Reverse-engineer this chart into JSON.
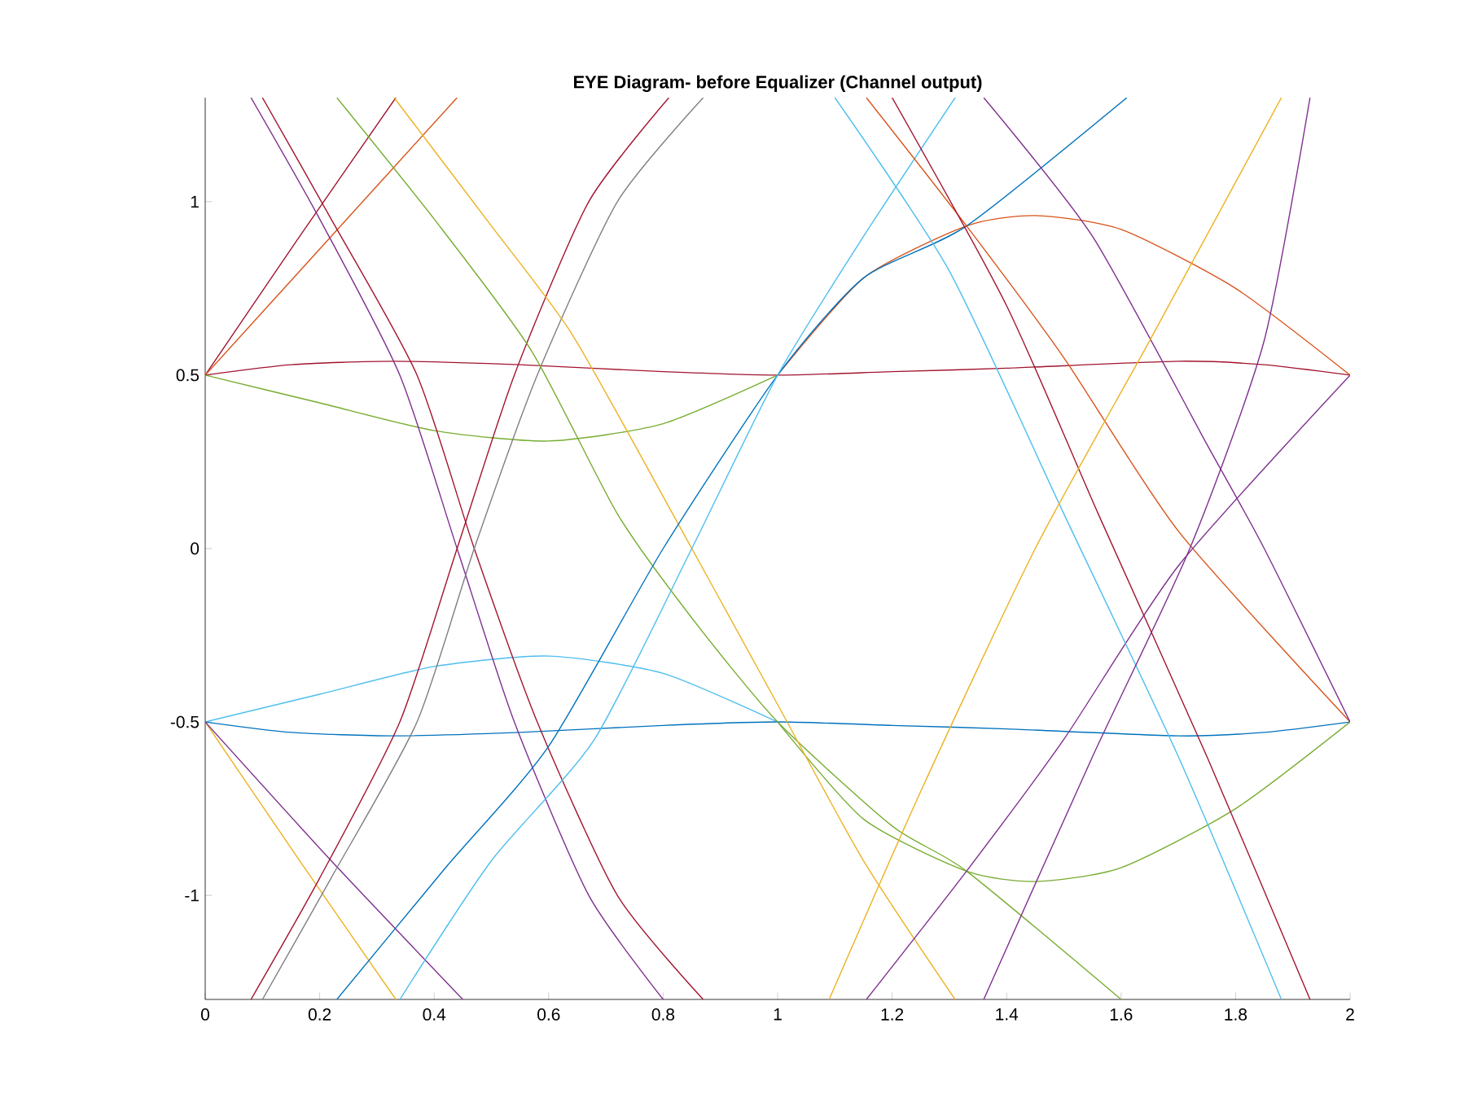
{
  "chart_data": {
    "type": "line",
    "title": "EYE Diagram- before Equalizer (Channel output)",
    "xlim": [
      0,
      2
    ],
    "ylim": [
      -1.3,
      1.3
    ],
    "xticks": [
      0,
      0.2,
      0.4,
      0.6,
      0.8,
      1,
      1.2,
      1.4,
      1.6,
      1.8,
      2
    ],
    "yticks": [
      -1,
      -0.5,
      0,
      0.5,
      1
    ],
    "grid": false,
    "marker": "none",
    "line_style": "solid",
    "series": [
      {
        "color": "#a2142f",
        "x": [
          0,
          0.15,
          0.33,
          0.55,
          0.8,
          1.0,
          1.2,
          1.4,
          1.7,
          1.85,
          2
        ],
        "values": [
          0.5,
          0.53,
          0.54,
          0.53,
          0.51,
          0.5,
          0.51,
          0.52,
          0.54,
          0.53,
          0.5
        ]
      },
      {
        "color": "#77ac30",
        "x": [
          0,
          0.2,
          0.4,
          0.6,
          0.8,
          1.0
        ],
        "values": [
          0.5,
          0.42,
          0.34,
          0.31,
          0.36,
          0.5
        ]
      },
      {
        "color": "#4dbeee",
        "x": [
          0,
          0.2,
          0.4,
          0.6,
          0.8,
          1.0
        ],
        "values": [
          -0.5,
          -0.42,
          -0.34,
          -0.31,
          -0.36,
          -0.5
        ]
      },
      {
        "color": "#0072bd",
        "x": [
          0,
          0.15,
          0.33,
          0.55,
          0.8,
          1.0,
          1.2,
          1.4,
          1.7,
          1.85,
          2
        ],
        "values": [
          -0.5,
          -0.53,
          -0.54,
          -0.53,
          -0.51,
          -0.5,
          -0.51,
          -0.52,
          -0.54,
          -0.53,
          -0.5
        ]
      },
      {
        "color": "#d95319",
        "x": [
          1.0,
          1.15,
          1.33,
          1.45,
          1.6,
          1.8,
          2.0
        ],
        "values": [
          0.5,
          0.78,
          0.93,
          0.96,
          0.92,
          0.75,
          0.5
        ]
      },
      {
        "color": "#77ac30",
        "x": [
          1.0,
          1.15,
          1.33,
          1.45,
          1.6,
          1.8,
          2.0
        ],
        "values": [
          -0.5,
          -0.78,
          -0.93,
          -0.96,
          -0.92,
          -0.75,
          -0.5
        ]
      },
      {
        "color": "#a2142f",
        "x": [
          0,
          0.165,
          0.333
        ],
        "values": [
          0.5,
          0.9,
          1.3
        ]
      },
      {
        "color": "#d95319",
        "x": [
          0,
          0.22,
          0.44
        ],
        "values": [
          0.5,
          0.9,
          1.3
        ]
      },
      {
        "color": "#edb120",
        "x": [
          0,
          0.165,
          0.333
        ],
        "values": [
          -0.5,
          -0.9,
          -1.3
        ]
      },
      {
        "color": "#7e2f8e",
        "x": [
          0,
          0.22,
          0.45
        ],
        "values": [
          -0.5,
          -0.9,
          -1.3
        ]
      },
      {
        "color": "#7e2f8e",
        "x": [
          0.08,
          0.2,
          0.34,
          0.44,
          0.54,
          0.67,
          0.8
        ],
        "values": [
          1.3,
          0.95,
          0.5,
          0.0,
          -0.5,
          -1.0,
          -1.3
        ]
      },
      {
        "color": "#a2142f",
        "x": [
          0.1,
          0.22,
          0.37,
          0.47,
          0.58,
          0.72,
          0.87
        ],
        "values": [
          1.3,
          0.95,
          0.5,
          0.0,
          -0.5,
          -1.0,
          -1.3
        ]
      },
      {
        "color": "#a2142f",
        "x": [
          0.08,
          0.2,
          0.34,
          0.44,
          0.54,
          0.67,
          0.81
        ],
        "values": [
          -1.3,
          -0.95,
          -0.5,
          0.0,
          0.5,
          1.0,
          1.3
        ]
      },
      {
        "color": "#7f7f7f",
        "x": [
          0.1,
          0.22,
          0.37,
          0.47,
          0.58,
          0.72,
          0.87
        ],
        "values": [
          -1.3,
          -0.95,
          -0.5,
          0.0,
          0.5,
          1.0,
          1.3
        ]
      },
      {
        "color": "#77ac30",
        "x": [
          0.23,
          0.4,
          0.57,
          0.72,
          0.85,
          1.0,
          1.2,
          1.33,
          1.6
        ],
        "values": [
          1.3,
          0.95,
          0.57,
          0.1,
          -0.2,
          -0.5,
          -0.8,
          -0.93,
          -1.3
        ]
      },
      {
        "color": "#edb120",
        "x": [
          0.33,
          0.5,
          0.64,
          0.8,
          1.0,
          1.15,
          1.31
        ],
        "values": [
          1.3,
          0.93,
          0.62,
          0.15,
          -0.45,
          -0.9,
          -1.3
        ]
      },
      {
        "color": "#0072bd",
        "x": [
          0.23,
          0.42,
          0.6,
          0.8,
          1.0,
          1.15,
          1.33,
          1.61
        ],
        "values": [
          -1.3,
          -0.92,
          -0.57,
          0.0,
          0.5,
          0.78,
          0.93,
          1.3
        ]
      },
      {
        "color": "#4dbeee",
        "x": [
          0.34,
          0.5,
          0.68,
          0.85,
          1.0,
          1.15,
          1.31
        ],
        "values": [
          -1.3,
          -0.9,
          -0.55,
          0.0,
          0.5,
          0.9,
          1.3
        ]
      },
      {
        "color": "#d95319",
        "x": [
          1.155,
          1.33,
          1.5,
          1.7,
          2.0
        ],
        "values": [
          1.3,
          0.93,
          0.55,
          0.05,
          -0.5
        ]
      },
      {
        "color": "#7e2f8e",
        "x": [
          1.155,
          1.33,
          1.5,
          1.7,
          2.0
        ],
        "values": [
          -1.3,
          -0.93,
          -0.55,
          -0.05,
          0.5
        ]
      },
      {
        "color": "#4dbeee",
        "x": [
          1.1,
          1.3,
          1.5,
          1.7,
          1.88
        ],
        "values": [
          1.3,
          0.8,
          0.1,
          -0.6,
          -1.3
        ]
      },
      {
        "color": "#a2142f",
        "x": [
          1.2,
          1.4,
          1.56,
          1.75,
          1.93
        ],
        "values": [
          1.3,
          0.7,
          0.1,
          -0.6,
          -1.3
        ]
      },
      {
        "color": "#7e2f8e",
        "x": [
          1.36,
          1.55,
          1.75,
          1.85,
          2.0
        ],
        "values": [
          1.3,
          0.9,
          0.3,
          0.0,
          -0.5
        ]
      },
      {
        "color": "#edb120",
        "x": [
          1.09,
          1.25,
          1.45,
          1.65,
          1.88
        ],
        "values": [
          -1.3,
          -0.7,
          0.0,
          0.6,
          1.3
        ]
      },
      {
        "color": "#7e2f8e",
        "x": [
          1.36,
          1.55,
          1.72,
          1.85,
          1.93
        ],
        "values": [
          -1.3,
          -0.6,
          0.0,
          0.6,
          1.3
        ]
      }
    ]
  }
}
